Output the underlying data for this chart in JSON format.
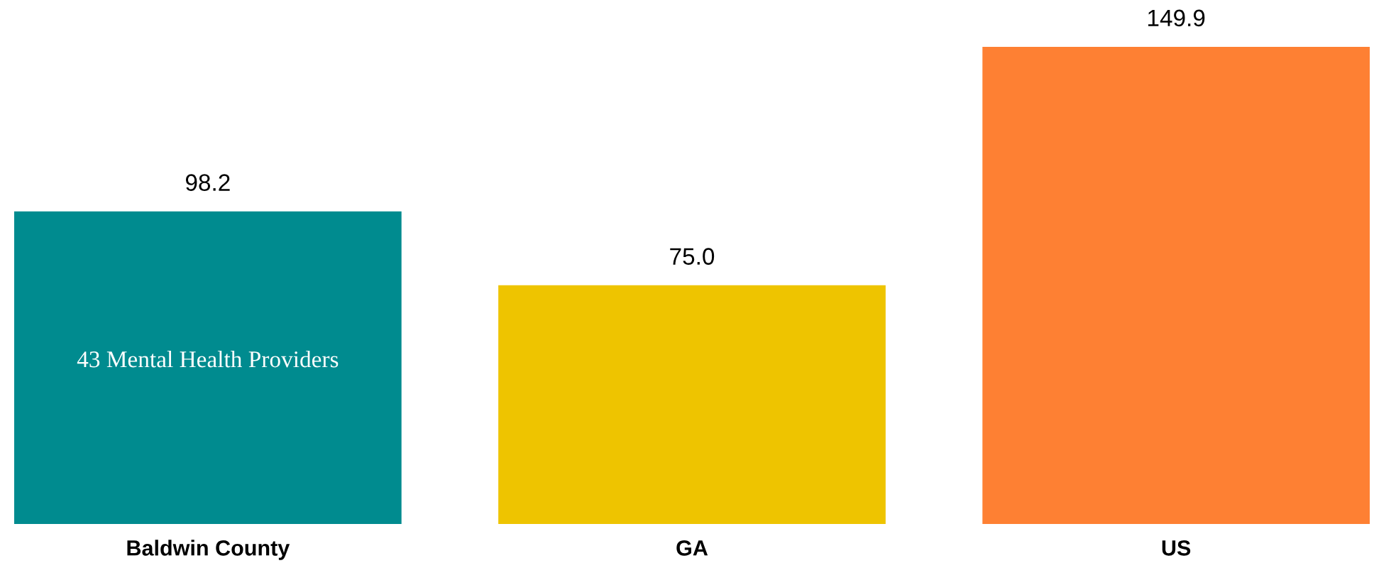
{
  "chart_data": {
    "type": "bar",
    "categories": [
      "Baldwin County",
      "GA",
      "US"
    ],
    "values": [
      98.2,
      75.0,
      149.9
    ],
    "value_labels": [
      "98.2",
      "75.0",
      "149.9"
    ],
    "colors": [
      "#008b8f",
      "#eec400",
      "#fe8033"
    ],
    "annotations": [
      "43 Mental Health Providers"
    ],
    "grid": false,
    "legend": false
  }
}
